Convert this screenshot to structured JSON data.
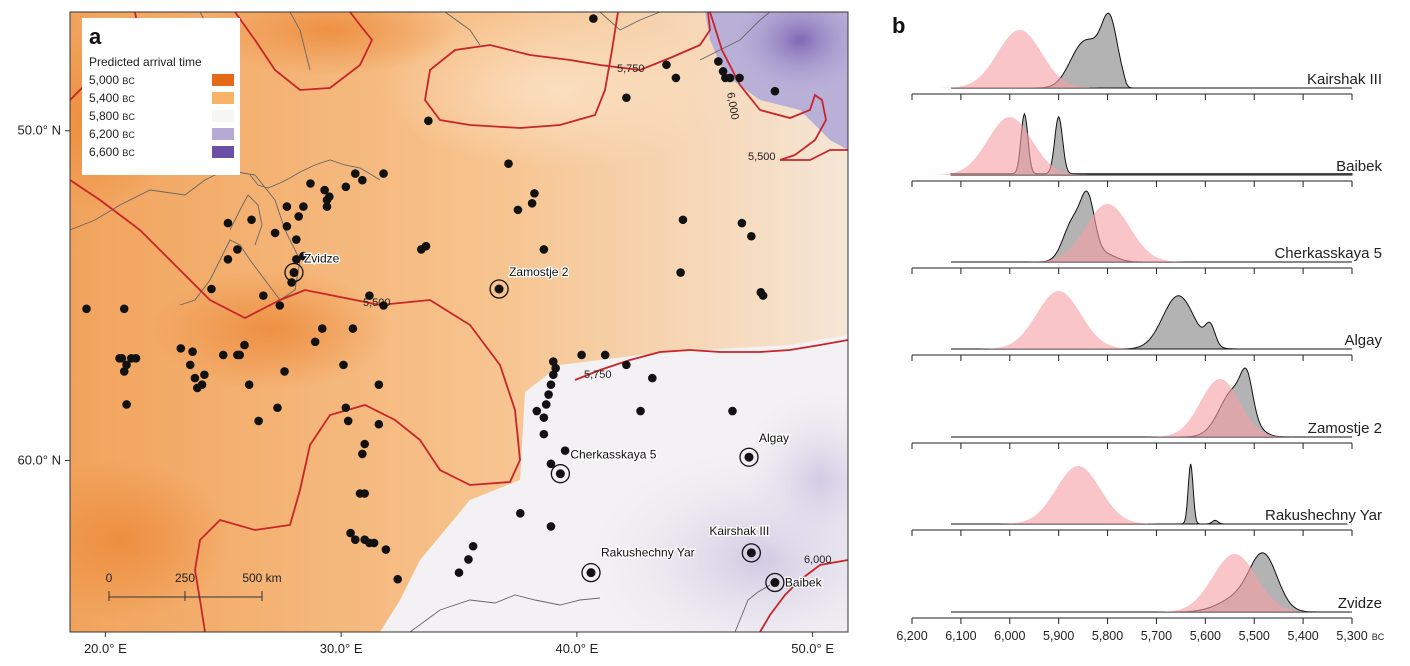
{
  "panel_a": {
    "label": "a",
    "legend": {
      "title": "Predicted arrival time",
      "items": [
        {
          "value": "5,000",
          "unit": "BC",
          "color": "#e8681a"
        },
        {
          "value": "5,400",
          "unit": "BC",
          "color": "#f7b466"
        },
        {
          "value": "5,800",
          "unit": "BC",
          "color": "#f6f6f4"
        },
        {
          "value": "6,200",
          "unit": "BC",
          "color": "#b4aad4"
        },
        {
          "value": "6,600",
          "unit": "BC",
          "color": "#6a4fa4"
        }
      ]
    },
    "y_ticks": [
      "60.0° N",
      "50.0° N"
    ],
    "x_ticks": [
      "20.0° E",
      "30.0° E",
      "40.0° E",
      "50.0° E"
    ],
    "scale_bar": {
      "labels": [
        "0",
        "250",
        "500 km"
      ]
    },
    "contour_labels": [
      "5,750",
      "6,000",
      "5,500",
      "5,500",
      "5,750",
      "6,000"
    ],
    "sites": [
      {
        "name": "Zvidze",
        "lon": 28.0,
        "lat": 55.7
      },
      {
        "name": "Zamostje 2",
        "lon": 36.7,
        "lat": 55.2
      },
      {
        "name": "Cherkasskaya 5",
        "lon": 39.3,
        "lat": 49.6
      },
      {
        "name": "Algay",
        "lon": 47.3,
        "lat": 50.1
      },
      {
        "name": "Kairshak III",
        "lon": 47.4,
        "lat": 47.2
      },
      {
        "name": "Rakushechny Yar",
        "lon": 40.6,
        "lat": 46.6
      },
      {
        "name": "Baibek",
        "lon": 48.4,
        "lat": 46.3
      }
    ]
  },
  "panel_b": {
    "label": "b",
    "x_ticks": [
      "6,200",
      "6,100",
      "6,000",
      "5,900",
      "5,800",
      "5,700",
      "5,600",
      "5,500",
      "5,400",
      "5,300"
    ],
    "x_unit": "BC",
    "rows": [
      {
        "name": "Kairshak III"
      },
      {
        "name": "Baibek"
      },
      {
        "name": "Cherkasskaya 5"
      },
      {
        "name": "Algay"
      },
      {
        "name": "Zamostje 2"
      },
      {
        "name": "Rakushechny Yar"
      },
      {
        "name": "Zvidze"
      }
    ]
  },
  "chart_data": [
    {
      "type": "heatmap",
      "description_kind": "map",
      "xlim": [
        18.5,
        51.5
      ],
      "ylim": [
        44.8,
        63.6
      ],
      "x_ticks": [
        20,
        30,
        40,
        50
      ],
      "y_ticks": [
        50,
        60
      ],
      "color_scale_bc": [
        5000,
        5400,
        5800,
        6200,
        6600
      ],
      "contours_bc": [
        5500,
        5750,
        6000
      ],
      "dots": [
        [
          19.2,
          54.6
        ],
        [
          20.8,
          54.6
        ],
        [
          20.6,
          53.1
        ],
        [
          21.1,
          53.1
        ],
        [
          20.9,
          52.9
        ],
        [
          20.8,
          52.7
        ],
        [
          20.7,
          53.1
        ],
        [
          21.3,
          53.1
        ],
        [
          20.9,
          51.7
        ],
        [
          23.2,
          53.4
        ],
        [
          23.7,
          53.3
        ],
        [
          23.6,
          52.9
        ],
        [
          24.2,
          52.6
        ],
        [
          23.8,
          52.5
        ],
        [
          24.1,
          52.3
        ],
        [
          23.9,
          52.2
        ],
        [
          25.0,
          53.2
        ],
        [
          25.6,
          53.2
        ],
        [
          25.9,
          53.5
        ],
        [
          25.7,
          53.2
        ],
        [
          26.1,
          52.3
        ],
        [
          26.5,
          51.2
        ],
        [
          27.3,
          51.6
        ],
        [
          27.6,
          52.7
        ],
        [
          26.7,
          55.0
        ],
        [
          27.4,
          54.7
        ],
        [
          27.9,
          55.4
        ],
        [
          27.7,
          57.1
        ],
        [
          28.1,
          56.7
        ],
        [
          28.4,
          56.2
        ],
        [
          28.2,
          57.4
        ],
        [
          28.4,
          57.7
        ],
        [
          24.5,
          55.2
        ],
        [
          25.2,
          56.1
        ],
        [
          25.6,
          56.4
        ],
        [
          25.2,
          57.2
        ],
        [
          26.2,
          57.3
        ],
        [
          27.2,
          56.9
        ],
        [
          27.7,
          57.7
        ],
        [
          28.1,
          56.1
        ],
        [
          28.7,
          58.4
        ],
        [
          29.3,
          58.2
        ],
        [
          29.5,
          58.0
        ],
        [
          29.4,
          57.9
        ],
        [
          29.4,
          57.7
        ],
        [
          30.2,
          58.3
        ],
        [
          30.9,
          58.5
        ],
        [
          28.9,
          53.6
        ],
        [
          29.2,
          54.0
        ],
        [
          30.5,
          54.0
        ],
        [
          30.1,
          52.9
        ],
        [
          30.2,
          51.6
        ],
        [
          30.3,
          51.2
        ],
        [
          31.0,
          50.5
        ],
        [
          30.9,
          50.2
        ],
        [
          31.6,
          51.1
        ],
        [
          30.6,
          58.7
        ],
        [
          31.2,
          55.0
        ],
        [
          31.8,
          54.7
        ],
        [
          31.6,
          52.3
        ],
        [
          30.8,
          49.0
        ],
        [
          31.0,
          49.0
        ],
        [
          30.4,
          47.8
        ],
        [
          30.6,
          47.6
        ],
        [
          31.0,
          47.6
        ],
        [
          31.2,
          47.5
        ],
        [
          31.4,
          47.5
        ],
        [
          31.9,
          47.3
        ],
        [
          32.4,
          46.4
        ],
        [
          31.8,
          58.7
        ],
        [
          33.7,
          60.3
        ],
        [
          33.6,
          56.5
        ],
        [
          33.4,
          56.4
        ],
        [
          35.0,
          46.6
        ],
        [
          35.4,
          47.0
        ],
        [
          35.6,
          47.4
        ],
        [
          37.1,
          59.0
        ],
        [
          37.5,
          57.6
        ],
        [
          38.1,
          57.8
        ],
        [
          38.2,
          58.1
        ],
        [
          38.6,
          56.4
        ],
        [
          37.6,
          48.4
        ],
        [
          39.0,
          53.0
        ],
        [
          39.1,
          52.8
        ],
        [
          39.0,
          52.6
        ],
        [
          38.9,
          52.3
        ],
        [
          38.8,
          52.0
        ],
        [
          38.7,
          51.7
        ],
        [
          38.3,
          51.5
        ],
        [
          38.6,
          51.3
        ],
        [
          38.6,
          50.8
        ],
        [
          38.9,
          49.9
        ],
        [
          39.5,
          50.3
        ],
        [
          38.9,
          48.0
        ],
        [
          40.7,
          63.4
        ],
        [
          41.2,
          53.2
        ],
        [
          42.1,
          52.9
        ],
        [
          42.1,
          61.0
        ],
        [
          43.2,
          52.5
        ],
        [
          43.8,
          62.0
        ],
        [
          44.2,
          61.6
        ],
        [
          44.4,
          55.7
        ],
        [
          44.5,
          57.3
        ],
        [
          46.0,
          62.1
        ],
        [
          46.2,
          61.8
        ],
        [
          46.3,
          61.6
        ],
        [
          46.5,
          61.6
        ],
        [
          46.9,
          61.6
        ],
        [
          46.6,
          51.5
        ],
        [
          47.0,
          57.2
        ],
        [
          47.4,
          56.8
        ],
        [
          47.8,
          55.1
        ],
        [
          47.9,
          55.0
        ],
        [
          48.4,
          61.2
        ],
        [
          40.2,
          53.2
        ],
        [
          42.7,
          51.5
        ]
      ]
    },
    {
      "type": "area",
      "x_label": "BC",
      "xlim": [
        6200,
        5300
      ],
      "series": [
        {
          "site": "Kairshak III",
          "prior_peak_bc": 5980,
          "prior_sd": 45,
          "posterior_peak_bc": 5800,
          "posterior_range_bc": [
            5880,
            5740
          ]
        },
        {
          "site": "Baibek",
          "prior_peak_bc": 6000,
          "prior_sd": 45,
          "posterior_peaks_bc": [
            5970,
            5900
          ],
          "posterior_range_bc": [
            5980,
            5885
          ]
        },
        {
          "site": "Cherkasskaya 5",
          "prior_peak_bc": 5800,
          "prior_sd": 45,
          "posterior_peak_bc": 5840,
          "posterior_range_bc": [
            5920,
            5790
          ]
        },
        {
          "site": "Algay",
          "prior_peak_bc": 5900,
          "prior_sd": 45,
          "posterior_peak_bc": 5650,
          "posterior_range_bc": [
            5760,
            5570
          ]
        },
        {
          "site": "Zamostje 2",
          "prior_peak_bc": 5570,
          "prior_sd": 40,
          "posterior_peak_bc": 5520,
          "posterior_range_bc": [
            5620,
            5470
          ]
        },
        {
          "site": "Rakushechny Yar",
          "prior_peak_bc": 5860,
          "prior_sd": 45,
          "posterior_peak_bc": 5630,
          "posterior_range_bc": [
            5640,
            5580
          ]
        },
        {
          "site": "Zvidze",
          "prior_peak_bc": 5540,
          "prior_sd": 45,
          "posterior_peak_bc": 5475,
          "posterior_range_bc": [
            5580,
            5420
          ]
        }
      ]
    }
  ]
}
